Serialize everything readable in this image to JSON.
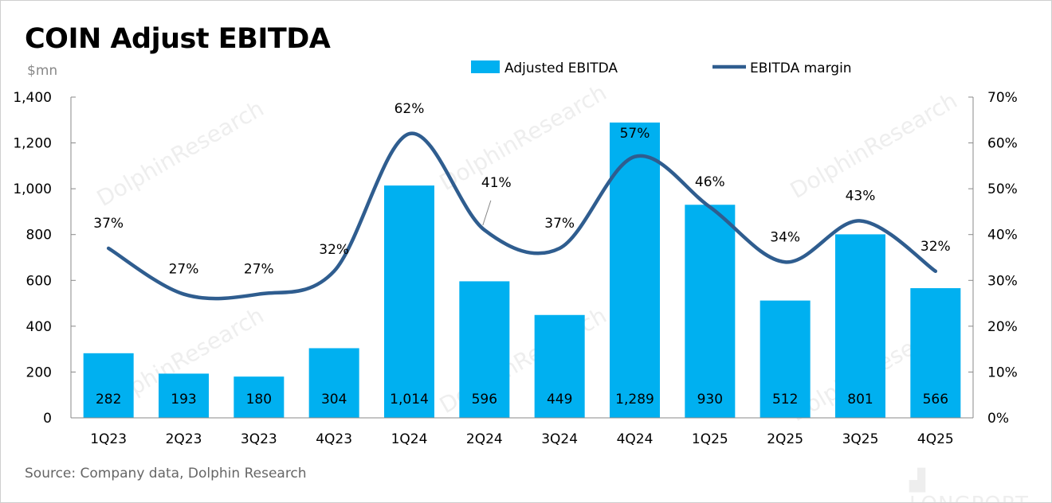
{
  "chart_data": {
    "type": "bar+line",
    "title": "COIN Adjust EBITDA",
    "unit_label": "$mn",
    "categories": [
      "1Q23",
      "2Q23",
      "3Q23",
      "4Q23",
      "1Q24",
      "2Q24",
      "3Q24",
      "4Q24",
      "1Q25",
      "2Q25",
      "3Q25",
      "4Q25"
    ],
    "series": [
      {
        "name": "Adjusted EBITDA",
        "type": "bar",
        "axis": "left",
        "color": "#00B0F0",
        "values": [
          282,
          193,
          180,
          304,
          1014,
          596,
          449,
          1289,
          930,
          512,
          801,
          566
        ],
        "labels": [
          "282",
          "193",
          "180",
          "304",
          "1,014",
          "596",
          "449",
          "1,289",
          "930",
          "512",
          "801",
          "566"
        ]
      },
      {
        "name": "EBITDA margin",
        "type": "line",
        "axis": "right",
        "color": "#2F5D8F",
        "values": [
          37,
          27,
          27,
          32,
          62,
          41,
          37,
          57,
          46,
          34,
          43,
          32
        ],
        "labels": [
          "37%",
          "27%",
          "27%",
          "32%",
          "62%",
          "41%",
          "37%",
          "57%",
          "46%",
          "34%",
          "43%",
          "32%"
        ]
      }
    ],
    "y_left": {
      "range": [
        0,
        1400
      ],
      "ticks": [
        "0",
        "200",
        "400",
        "600",
        "800",
        "1,000",
        "1,200",
        "1,400"
      ]
    },
    "y_right": {
      "range": [
        0,
        70
      ],
      "ticks": [
        "0%",
        "10%",
        "20%",
        "30%",
        "40%",
        "50%",
        "60%",
        "70%"
      ]
    },
    "legend": "top-center",
    "grid": false
  },
  "source": "Source: Company data, Dolphin Research",
  "watermark": "DolphinResearch",
  "brand": "LONGPORT"
}
